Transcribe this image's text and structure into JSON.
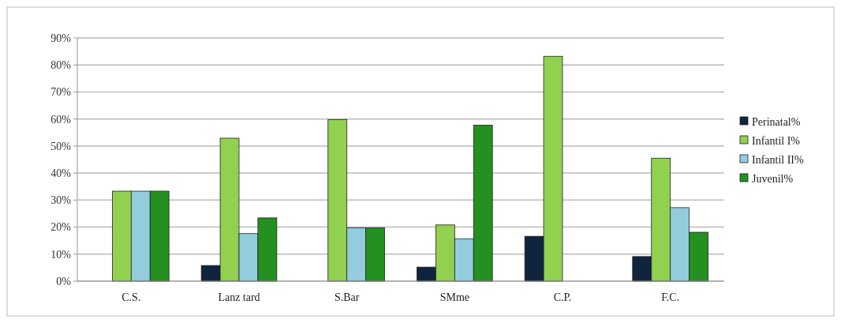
{
  "chart_data": {
    "type": "bar",
    "categories": [
      "C.S.",
      "Lanz tard",
      "S.Bar",
      "SMme",
      "C.P.",
      "F.C."
    ],
    "series": [
      {
        "name": "Perinatal%",
        "color": "#10243e",
        "values": [
          0,
          5.8,
          0,
          5.2,
          16.6,
          9.1
        ]
      },
      {
        "name": "Infantil I%",
        "color": "#92d050",
        "values": [
          33.3,
          52.9,
          59.8,
          20.8,
          83.2,
          45.5
        ]
      },
      {
        "name": "Infantil II%",
        "color": "#93cddd",
        "values": [
          33.3,
          17.6,
          19.7,
          15.7,
          0,
          27.2
        ]
      },
      {
        "name": "Juvenil%",
        "color": "#23901f",
        "values": [
          33.3,
          23.4,
          19.7,
          57.7,
          0,
          18.1
        ]
      }
    ],
    "ylim": [
      0,
      90
    ],
    "yticks": [
      {
        "value": 0,
        "label": "0%"
      },
      {
        "value": 10,
        "label": "10%"
      },
      {
        "value": 20,
        "label": "20%"
      },
      {
        "value": 30,
        "label": "30%"
      },
      {
        "value": 40,
        "label": "40%"
      },
      {
        "value": 50,
        "label": "50%"
      },
      {
        "value": 60,
        "label": "60%"
      },
      {
        "value": 70,
        "label": "70%"
      },
      {
        "value": 80,
        "label": "80%"
      },
      {
        "value": 90,
        "label": "90%"
      }
    ],
    "grid": "y",
    "legend": "right"
  }
}
